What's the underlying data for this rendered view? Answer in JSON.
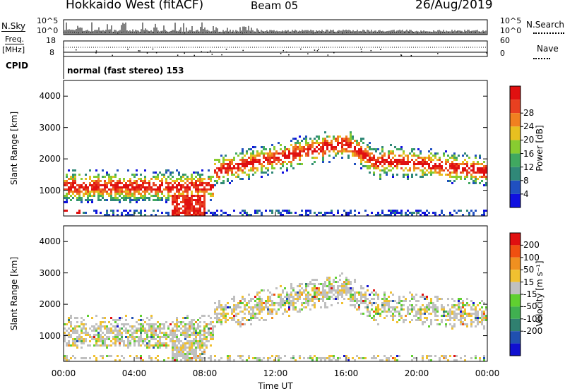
{
  "header": {
    "station": "Hokkaido West (fitACF)",
    "beam": "Beam 05",
    "date": "26/Aug/2019"
  },
  "noise_panel": {
    "left_label": "N.Sky",
    "right_label": "N.Search",
    "tick_top": "10^5",
    "tick_bottom": "10^0"
  },
  "freq_panel": {
    "left_label_line1": "Freq.",
    "left_label_line2": "[MHz]",
    "left_tick_top": "18",
    "left_tick_bottom": "8",
    "right_label": "Nave",
    "right_tick_top": "60",
    "right_tick_bottom": "0"
  },
  "cpid": {
    "label": "CPID",
    "value": "normal (fast stereo) 153"
  },
  "chart_data": [
    {
      "type": "heatmap",
      "name": "power",
      "ylabel": "Slant Range [km]",
      "xlabel": "Time UT",
      "ylim": [
        180,
        4500
      ],
      "yticks": [
        1000,
        2000,
        3000,
        4000
      ],
      "x_ticks": [
        "00:00",
        "04:00",
        "08:00",
        "12:00",
        "16:00",
        "20:00",
        "00:00"
      ],
      "colorbar": {
        "label": "Power [dB]",
        "ticks": [
          4,
          8,
          12,
          16,
          20,
          24,
          28
        ],
        "colors": [
          "#1010e0",
          "#2050c0",
          "#308878",
          "#40a860",
          "#88cc30",
          "#e8c020",
          "#f08020",
          "#e84020",
          "#e01010"
        ]
      }
    },
    {
      "type": "heatmap",
      "name": "velocity",
      "ylabel": "Slant Range [km]",
      "xlabel": "Time UT",
      "ylim": [
        180,
        4500
      ],
      "yticks": [
        1000,
        2000,
        3000,
        4000
      ],
      "x_ticks": [
        "00:00",
        "04:00",
        "08:00",
        "12:00",
        "16:00",
        "20:00",
        "00:00"
      ],
      "colorbar": {
        "label": "Velocity [m s⁻¹]",
        "ticks": [
          200,
          100,
          50,
          15,
          -15,
          -50,
          -100,
          -200
        ],
        "colors": [
          "#1010d0",
          "#2050b0",
          "#308070",
          "#40b050",
          "#60d030",
          "#c0c0c0",
          "#f0c030",
          "#f09020",
          "#f05010",
          "#e01010"
        ]
      }
    }
  ]
}
